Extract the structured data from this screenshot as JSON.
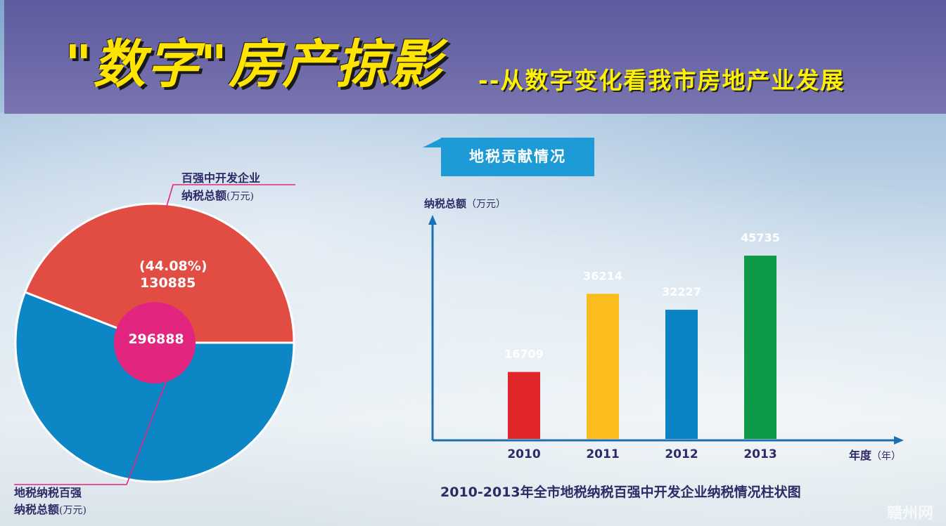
{
  "header": {
    "title": "\"数字\"房产掠影",
    "subtitle": "--从数字变化看我市房地产业发展"
  },
  "pie": {
    "center_value": "296888",
    "top_label_line1": "百强中开发企业",
    "top_label_line2": "纳税总额",
    "top_label_unit": "(万元)",
    "slice_pct": "(44.08%)",
    "slice_value": "130885",
    "bottom_label_line1": "地税纳税百强",
    "bottom_label_line2": "纳税总额",
    "bottom_label_unit": "(万元)"
  },
  "bar_section": {
    "tab_title": "地税贡献情况",
    "ylabel": "纳税总额",
    "ylabel_unit": "（万元）",
    "xlabel": "年度",
    "xlabel_unit": "（年）",
    "caption": "2010-2013年全市地税纳税百强中开发企业纳税情况柱状图"
  },
  "colors": {
    "pie_red": "#e24d43",
    "pie_blue": "#0d86c6",
    "pie_center": "#e2267f",
    "axis": "#1b6fb3",
    "bar_2010": "#e1262a",
    "bar_2011": "#fbbd1c",
    "bar_2012": "#0a83c5",
    "bar_2013": "#0e9a48"
  },
  "watermark": "赣州网",
  "chart_data": [
    {
      "type": "pie",
      "total": 296888,
      "slices": [
        {
          "label": "百强中开发企业纳税总额(万元)",
          "value": 130885,
          "percent": 44.08,
          "color": "#e24d43"
        },
        {
          "label": "",
          "value": 166003,
          "percent": 55.92,
          "color": "#0d86c6"
        }
      ]
    },
    {
      "type": "bar",
      "title": "地税贡献情况",
      "xlabel": "年度（年）",
      "ylabel": "纳税总额（万元）",
      "categories": [
        "2010",
        "2011",
        "2012",
        "2013"
      ],
      "values": [
        16709,
        36214,
        32227,
        45735
      ],
      "colors": [
        "#e1262a",
        "#fbbd1c",
        "#0a83c5",
        "#0e9a48"
      ]
    }
  ]
}
